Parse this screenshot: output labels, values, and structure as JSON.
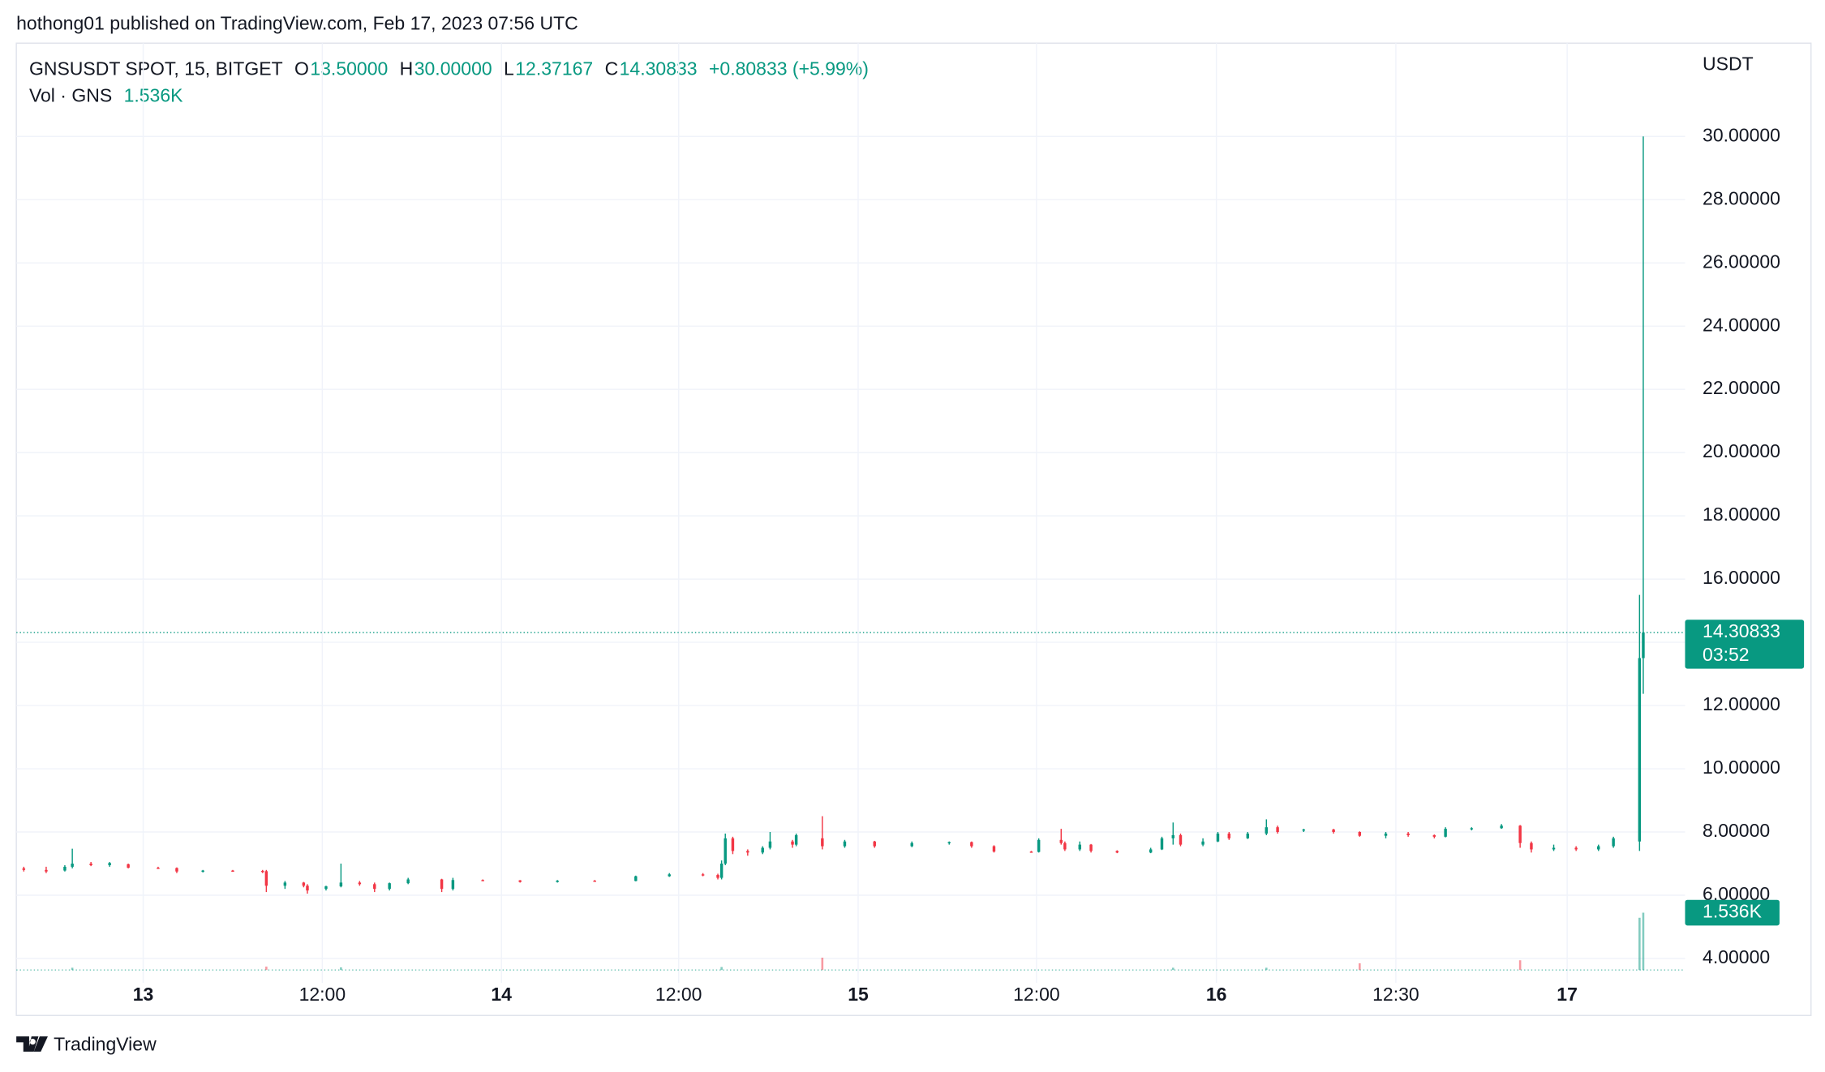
{
  "header": {
    "text": "hothong01 published on TradingView.com, Feb 17, 2023 07:56 UTC"
  },
  "legend": {
    "symbol": "GNSUSDT SPOT, 15, BITGET",
    "open_label": "O",
    "open": "13.50000",
    "high_label": "H",
    "high": "30.00000",
    "low_label": "L",
    "low": "12.37167",
    "close_label": "C",
    "close": "14.30833",
    "change": "+0.80833 (+5.99%)",
    "volume_name": "Vol · GNS",
    "volume": "1.536K"
  },
  "footer": {
    "brand": "TradingView"
  },
  "chart_data": {
    "type": "candlestick",
    "y_axis_label": "USDT",
    "up_color": "#089981",
    "down_color": "#f23645",
    "grid": true,
    "xlim": [
      0,
      447.2
    ],
    "ylim": [
      3.23,
      32.95
    ],
    "xticks": [
      {
        "value": 34,
        "label": "13"
      },
      {
        "value": 82,
        "label": "12:00"
      },
      {
        "value": 130,
        "label": "14"
      },
      {
        "value": 177.5,
        "label": "12:00"
      },
      {
        "value": 225.6,
        "label": "15"
      },
      {
        "value": 273.4,
        "label": "12:00"
      },
      {
        "value": 321.6,
        "label": "16"
      },
      {
        "value": 369.7,
        "label": "12:30"
      },
      {
        "value": 415.6,
        "label": "17"
      }
    ],
    "yticks": [
      {
        "value": 4,
        "label": "4.00000"
      },
      {
        "value": 6,
        "label": "6.00000"
      },
      {
        "value": 8,
        "label": "8.00000"
      },
      {
        "value": 10,
        "label": "10.00000"
      },
      {
        "value": 12,
        "label": "12.00000"
      },
      {
        "value": 14,
        "label": "14.00000"
      },
      {
        "value": 16,
        "label": "16.00000"
      },
      {
        "value": 18,
        "label": "18.00000"
      },
      {
        "value": 20,
        "label": "20.00000"
      },
      {
        "value": 22,
        "label": "22.00000"
      },
      {
        "value": 24,
        "label": "24.00000"
      },
      {
        "value": 26,
        "label": "26.00000"
      },
      {
        "value": 28,
        "label": "28.00000"
      },
      {
        "value": 30,
        "label": "30.00000"
      }
    ],
    "last_price": {
      "value": 14.30833,
      "label": "14.30833",
      "countdown": "03:52"
    },
    "volume_ylim": [
      0,
      2000
    ],
    "last_volume": {
      "value": 1536,
      "label": "1.536K"
    },
    "candles": [
      [
        2,
        6.85,
        6.9,
        6.75,
        6.8
      ],
      [
        8,
        6.8,
        6.9,
        6.7,
        6.75
      ],
      [
        13,
        6.78,
        6.95,
        6.75,
        6.9
      ],
      [
        15,
        6.9,
        7.47,
        6.85,
        7.0
      ],
      [
        20,
        7.0,
        7.05,
        6.92,
        6.95
      ],
      [
        25,
        6.95,
        7.05,
        6.9,
        7.02
      ],
      [
        30,
        6.98,
        7.0,
        6.85,
        6.87
      ],
      [
        38,
        6.87,
        6.9,
        6.83,
        6.86
      ],
      [
        43,
        6.86,
        6.88,
        6.7,
        6.75
      ],
      [
        50,
        6.75,
        6.8,
        6.72,
        6.78
      ],
      [
        58,
        6.78,
        6.8,
        6.74,
        6.77
      ],
      [
        66,
        6.77,
        6.8,
        6.7,
        6.76
      ],
      [
        67,
        6.76,
        6.8,
        6.1,
        6.3
      ],
      [
        72,
        6.3,
        6.45,
        6.2,
        6.4
      ],
      [
        77,
        6.4,
        6.42,
        6.25,
        6.3
      ],
      [
        78,
        6.3,
        6.35,
        6.05,
        6.15
      ],
      [
        83,
        6.2,
        6.3,
        6.15,
        6.28
      ],
      [
        87,
        6.28,
        7.0,
        6.25,
        6.4
      ],
      [
        92,
        6.4,
        6.45,
        6.3,
        6.35
      ],
      [
        96,
        6.35,
        6.4,
        6.1,
        6.2
      ],
      [
        100,
        6.2,
        6.4,
        6.15,
        6.38
      ],
      [
        105,
        6.38,
        6.55,
        6.35,
        6.5
      ],
      [
        114,
        6.5,
        6.52,
        6.1,
        6.2
      ],
      [
        117,
        6.2,
        6.55,
        6.15,
        6.48
      ],
      [
        125,
        6.48,
        6.5,
        6.45,
        6.47
      ],
      [
        135,
        6.47,
        6.48,
        6.4,
        6.42
      ],
      [
        145,
        6.42,
        6.48,
        6.4,
        6.46
      ],
      [
        155,
        6.46,
        6.48,
        6.44,
        6.45
      ],
      [
        166,
        6.45,
        6.62,
        6.44,
        6.6
      ],
      [
        175,
        6.6,
        6.7,
        6.58,
        6.66
      ],
      [
        184,
        6.66,
        6.7,
        6.6,
        6.64
      ],
      [
        188,
        6.64,
        6.68,
        6.5,
        6.55
      ],
      [
        189,
        6.55,
        7.1,
        6.5,
        7.0
      ],
      [
        190,
        7.0,
        7.95,
        6.95,
        7.8
      ],
      [
        192,
        7.8,
        7.85,
        7.3,
        7.4
      ],
      [
        196,
        7.4,
        7.45,
        7.25,
        7.35
      ],
      [
        200,
        7.35,
        7.55,
        7.3,
        7.5
      ],
      [
        202,
        7.5,
        8.0,
        7.45,
        7.7
      ],
      [
        208,
        7.7,
        7.75,
        7.5,
        7.6
      ],
      [
        209,
        7.6,
        7.95,
        7.55,
        7.9
      ],
      [
        216,
        7.8,
        8.5,
        7.45,
        7.55
      ],
      [
        222,
        7.55,
        7.75,
        7.5,
        7.7
      ],
      [
        230,
        7.7,
        7.72,
        7.5,
        7.55
      ],
      [
        240,
        7.55,
        7.7,
        7.52,
        7.65
      ],
      [
        250,
        7.65,
        7.7,
        7.6,
        7.68
      ],
      [
        256,
        7.68,
        7.7,
        7.5,
        7.55
      ],
      [
        262,
        7.55,
        7.58,
        7.35,
        7.38
      ],
      [
        272,
        7.38,
        7.4,
        7.35,
        7.37
      ],
      [
        274,
        7.37,
        7.8,
        7.35,
        7.75
      ],
      [
        280,
        7.75,
        8.1,
        7.6,
        7.65
      ],
      [
        281,
        7.65,
        7.7,
        7.4,
        7.45
      ],
      [
        285,
        7.45,
        7.7,
        7.4,
        7.6
      ],
      [
        288,
        7.6,
        7.62,
        7.35,
        7.4
      ],
      [
        295,
        7.4,
        7.42,
        7.33,
        7.35
      ],
      [
        304,
        7.35,
        7.5,
        7.33,
        7.45
      ],
      [
        307,
        7.45,
        7.85,
        7.43,
        7.8
      ],
      [
        310,
        7.8,
        8.3,
        7.6,
        7.9
      ],
      [
        312,
        7.9,
        7.95,
        7.55,
        7.6
      ],
      [
        318,
        7.6,
        7.8,
        7.55,
        7.7
      ],
      [
        322,
        7.7,
        8.0,
        7.68,
        7.95
      ],
      [
        325,
        7.95,
        8.0,
        7.75,
        7.8
      ],
      [
        330,
        7.8,
        8.0,
        7.78,
        7.95
      ],
      [
        335,
        7.95,
        8.4,
        7.9,
        8.15
      ],
      [
        338,
        8.15,
        8.2,
        7.95,
        8.0
      ],
      [
        345,
        8.05,
        8.1,
        8.0,
        8.08
      ],
      [
        353,
        8.08,
        8.1,
        7.95,
        8.0
      ],
      [
        360,
        8.0,
        8.02,
        7.85,
        7.88
      ],
      [
        367,
        7.88,
        8.0,
        7.8,
        7.95
      ],
      [
        373,
        7.95,
        8.0,
        7.85,
        7.9
      ],
      [
        380,
        7.9,
        7.92,
        7.8,
        7.85
      ],
      [
        383,
        7.85,
        8.15,
        7.83,
        8.1
      ],
      [
        390,
        8.1,
        8.15,
        8.05,
        8.12
      ],
      [
        398,
        8.12,
        8.25,
        8.1,
        8.2
      ],
      [
        403,
        8.2,
        8.22,
        7.5,
        7.65
      ],
      [
        406,
        7.65,
        7.7,
        7.35,
        7.45
      ],
      [
        412,
        7.45,
        7.6,
        7.4,
        7.5
      ],
      [
        418,
        7.5,
        7.55,
        7.4,
        7.45
      ],
      [
        424,
        7.45,
        7.6,
        7.4,
        7.55
      ],
      [
        428,
        7.55,
        7.85,
        7.5,
        7.8
      ],
      [
        435,
        7.7,
        15.5,
        7.4,
        13.5
      ],
      [
        436,
        13.5,
        30.0,
        12.37167,
        14.30833
      ]
    ],
    "volumes": [
      [
        15,
        60
      ],
      [
        67,
        90
      ],
      [
        87,
        70
      ],
      [
        189,
        80
      ],
      [
        216,
        330
      ],
      [
        310,
        60
      ],
      [
        335,
        60
      ],
      [
        360,
        180
      ],
      [
        403,
        260
      ],
      [
        435,
        1400
      ],
      [
        436,
        1536
      ]
    ]
  }
}
